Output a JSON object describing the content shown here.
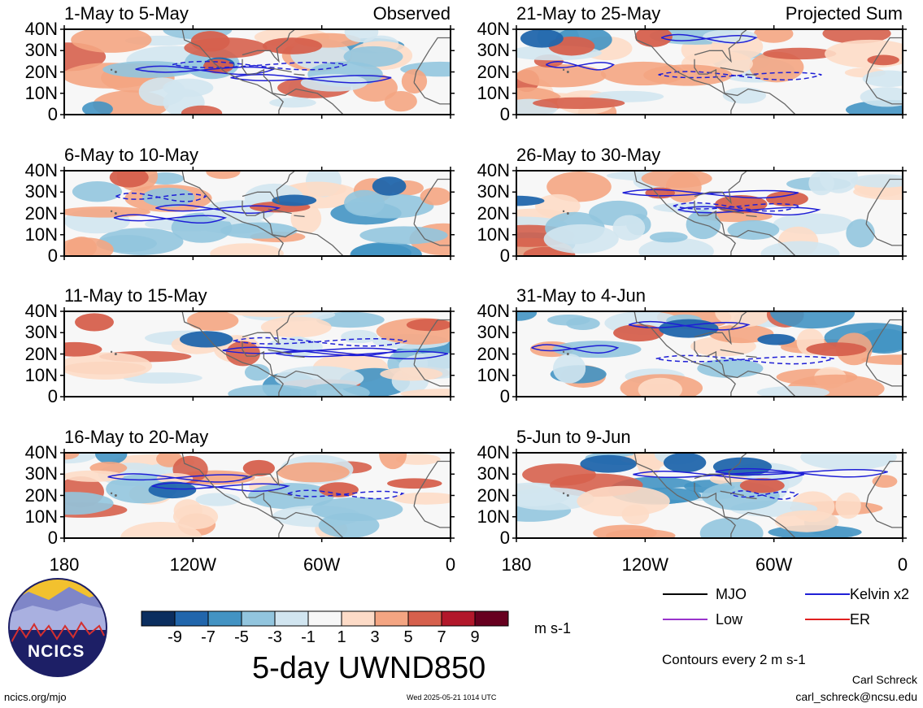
{
  "chart_data": {
    "type": "heatmap",
    "title": "5-day UWND850",
    "units": "m s-1",
    "lat_ticks": [
      "40N",
      "30N",
      "20N",
      "10N",
      "0"
    ],
    "lon_ticks": [
      "180",
      "120W",
      "60W",
      "0"
    ],
    "colorbar": {
      "labels": [
        "-9",
        "-7",
        "-5",
        "-3",
        "-1",
        "1",
        "3",
        "5",
        "7",
        "9"
      ],
      "colors": [
        "#0b2e5f",
        "#2166ac",
        "#4393c3",
        "#92c5de",
        "#d1e5f0",
        "#f7f7f7",
        "#fddbc7",
        "#f4a582",
        "#d6604d",
        "#b2182b",
        "#67001f"
      ]
    },
    "panels": [
      {
        "title": "1-May to 5-May",
        "tag": "Observed",
        "column": "left"
      },
      {
        "title": "6-May to 10-May",
        "tag": "",
        "column": "left"
      },
      {
        "title": "11-May to 15-May",
        "tag": "",
        "column": "left"
      },
      {
        "title": "16-May to 20-May",
        "tag": "",
        "column": "left"
      },
      {
        "title": "21-May to 25-May",
        "tag": "Projected Sum",
        "column": "right"
      },
      {
        "title": "26-May to 30-May",
        "tag": "",
        "column": "right"
      },
      {
        "title": "31-May to 4-Jun",
        "tag": "",
        "column": "right"
      },
      {
        "title": "5-Jun to 9-Jun",
        "tag": "",
        "column": "right"
      }
    ],
    "legend": [
      {
        "name": "MJO",
        "color": "#000000"
      },
      {
        "name": "Kelvin x2",
        "color": "#1f1fd6"
      },
      {
        "name": "Low",
        "color": "#9933cc"
      },
      {
        "name": "ER",
        "color": "#e02020"
      }
    ],
    "contour_note": "Contours every 2 m s-1"
  },
  "footer": {
    "logo_text": "NCICS",
    "url": "ncics.org/mjo",
    "timestamp": "Wed 2025-05-21 1014 UTC",
    "author_name": "Carl Schreck",
    "author_email": "carl_schreck@ncsu.edu"
  }
}
